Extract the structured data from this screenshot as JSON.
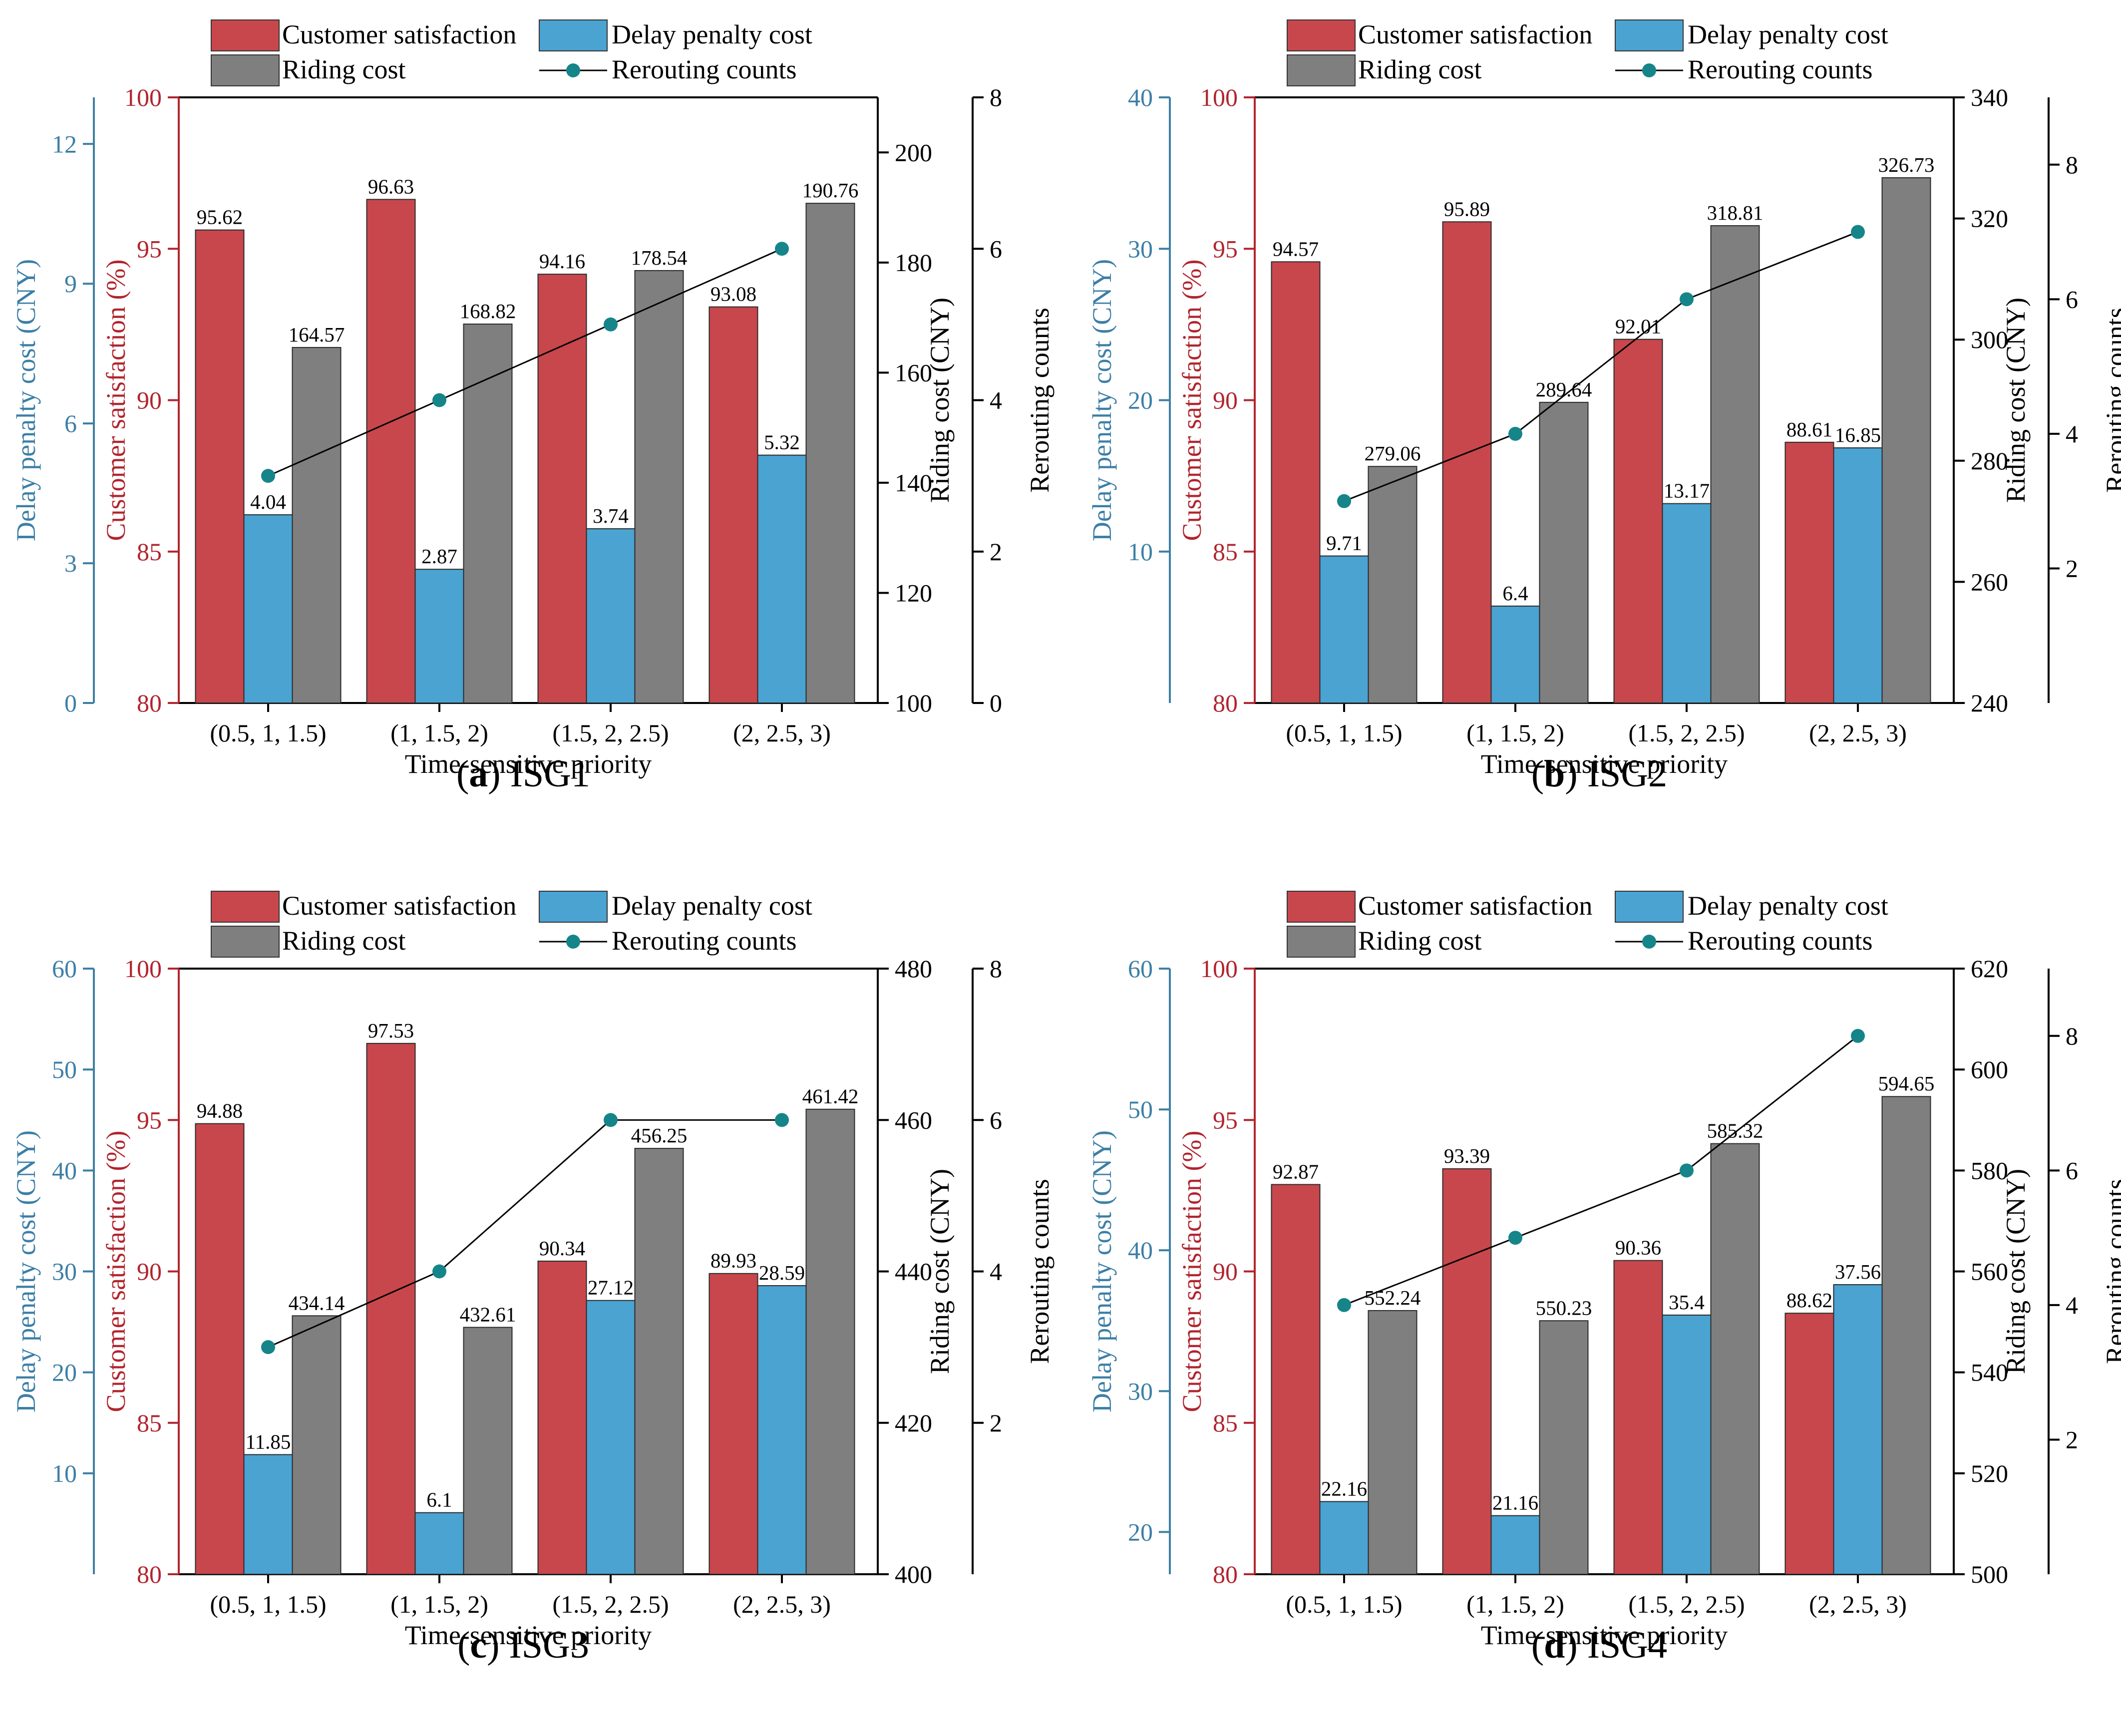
{
  "colors": {
    "customer_satisfaction": "#c8474c",
    "delay_penalty": "#4aa3d1",
    "riding_cost": "#7f7f7f",
    "rerouting_marker": "#15858a",
    "rerouting_line": "#000000",
    "axis_delay": "#3c7fa6",
    "axis_satisfaction": "#b1252e",
    "axis_black": "#000000"
  },
  "legend": {
    "customer_satisfaction": "Customer satisfaction",
    "delay_penalty": "Delay penalty cost",
    "riding_cost": "Riding cost",
    "rerouting": "Rerouting counts"
  },
  "chart_data": [
    {
      "type": "bar+line",
      "panel_letter": "(a)",
      "panel_name": "ISG1",
      "categories": [
        "(0.5, 1, 1.5)",
        "(1, 1.5, 2)",
        "(1.5, 2, 2.5)",
        "(2, 2.5, 3)"
      ],
      "xlabel": "Time-sensitive priority",
      "axes": {
        "delay": {
          "label": "Delay penalty cost (CNY)",
          "min": 0,
          "max": 13,
          "ticks": [
            "0",
            "3",
            "6",
            "9",
            "12"
          ],
          "tick_values": [
            0,
            3,
            6,
            9,
            12
          ]
        },
        "satisfaction": {
          "label": "Customer satisfaction (%)",
          "min": 80,
          "max": 100,
          "ticks": [
            "80",
            "85",
            "90",
            "95",
            "100"
          ],
          "tick_values": [
            80,
            85,
            90,
            95,
            100
          ]
        },
        "riding": {
          "label": "Riding cost (CNY)",
          "min": 100,
          "max": 210,
          "ticks": [
            "100",
            "120",
            "140",
            "160",
            "180",
            "200"
          ],
          "tick_values": [
            100,
            120,
            140,
            160,
            180,
            200
          ]
        },
        "rerouting": {
          "label": "Rerouting counts",
          "min": 0,
          "max": 8,
          "ticks": [
            "0",
            "2",
            "4",
            "6",
            "8"
          ],
          "tick_values": [
            0,
            2,
            4,
            6,
            8
          ]
        }
      },
      "series": [
        {
          "name": "Customer satisfaction",
          "values": [
            95.62,
            96.63,
            94.16,
            93.08
          ],
          "labels": [
            "95.62",
            "96.63",
            "94.16",
            "93.08"
          ]
        },
        {
          "name": "Delay penalty cost",
          "values": [
            4.04,
            2.87,
            3.74,
            5.32
          ],
          "labels": [
            "4.04",
            "2.87",
            "3.74",
            "5.32"
          ]
        },
        {
          "name": "Riding cost",
          "values": [
            164.57,
            168.82,
            178.54,
            190.76
          ],
          "labels": [
            "164.57",
            "168.82",
            "178.54",
            "190.76"
          ]
        },
        {
          "name": "Rerouting counts",
          "values": [
            3,
            4,
            5,
            6
          ]
        }
      ]
    },
    {
      "type": "bar+line",
      "panel_letter": "(b)",
      "panel_name": "ISG2",
      "categories": [
        "(0.5, 1, 1.5)",
        "(1, 1.5, 2)",
        "(1.5, 2, 2.5)",
        "(2, 2.5, 3)"
      ],
      "xlabel": "Time-sensitive priority",
      "axes": {
        "delay": {
          "label": "Delay penalty cost (CNY)",
          "min": 0,
          "max": 40,
          "ticks": [
            "10",
            "20",
            "30",
            "40"
          ],
          "tick_values": [
            10,
            20,
            30,
            40
          ]
        },
        "satisfaction": {
          "label": "Customer satisfaction (%)",
          "min": 80,
          "max": 100,
          "ticks": [
            "80",
            "85",
            "90",
            "95",
            "100"
          ],
          "tick_values": [
            80,
            85,
            90,
            95,
            100
          ]
        },
        "riding": {
          "label": "Riding cost (CNY)",
          "min": 240,
          "max": 340,
          "ticks": [
            "240",
            "260",
            "280",
            "300",
            "320",
            "340"
          ],
          "tick_values": [
            240,
            260,
            280,
            300,
            320,
            340
          ]
        },
        "rerouting": {
          "label": "Rerouting counts",
          "min": 0,
          "max": 9,
          "ticks": [
            "2",
            "4",
            "6",
            "8"
          ],
          "tick_values": [
            2,
            4,
            6,
            8
          ]
        }
      },
      "series": [
        {
          "name": "Customer satisfaction",
          "values": [
            94.57,
            95.89,
            92.01,
            88.61
          ],
          "labels": [
            "94.57",
            "95.89",
            "92.01",
            "88.61"
          ]
        },
        {
          "name": "Delay penalty cost",
          "values": [
            9.71,
            6.4,
            13.17,
            16.85
          ],
          "labels": [
            "9.71",
            "6.4",
            "13.17",
            "16.85"
          ]
        },
        {
          "name": "Riding cost",
          "values": [
            279.06,
            289.64,
            318.81,
            326.73
          ],
          "labels": [
            "279.06",
            "289.64",
            "318.81",
            "326.73"
          ]
        },
        {
          "name": "Rerouting counts",
          "values": [
            3,
            4,
            6,
            7
          ]
        }
      ]
    },
    {
      "type": "bar+line",
      "panel_letter": "(c)",
      "panel_name": "ISG3",
      "categories": [
        "(0.5, 1, 1.5)",
        "(1, 1.5, 2)",
        "(1.5, 2, 2.5)",
        "(2, 2.5, 3)"
      ],
      "xlabel": "Time-sensitive priority",
      "axes": {
        "delay": {
          "label": "Delay penalty cost (CNY)",
          "min": 0,
          "max": 60,
          "ticks": [
            "10",
            "20",
            "30",
            "40",
            "50",
            "60"
          ],
          "tick_values": [
            10,
            20,
            30,
            40,
            50,
            60
          ]
        },
        "satisfaction": {
          "label": "Customer satisfaction (%)",
          "min": 80,
          "max": 100,
          "ticks": [
            "80",
            "85",
            "90",
            "95",
            "100"
          ],
          "tick_values": [
            80,
            85,
            90,
            95,
            100
          ]
        },
        "riding": {
          "label": "Riding cost (CNY)",
          "min": 400,
          "max": 480,
          "ticks": [
            "400",
            "420",
            "440",
            "460",
            "480"
          ],
          "tick_values": [
            400,
            420,
            440,
            460,
            480
          ]
        },
        "rerouting": {
          "label": "Rerouting counts",
          "min": 0,
          "max": 8,
          "ticks": [
            "2",
            "4",
            "6",
            "8"
          ],
          "tick_values": [
            2,
            4,
            6,
            8
          ]
        }
      },
      "series": [
        {
          "name": "Customer satisfaction",
          "values": [
            94.88,
            97.53,
            90.34,
            89.93
          ],
          "labels": [
            "94.88",
            "97.53",
            "90.34",
            "89.93"
          ]
        },
        {
          "name": "Delay penalty cost",
          "values": [
            11.85,
            6.1,
            27.12,
            28.59
          ],
          "labels": [
            "11.85",
            "6.1",
            "27.12",
            "28.59"
          ]
        },
        {
          "name": "Riding cost",
          "values": [
            434.14,
            432.61,
            456.25,
            461.42
          ],
          "labels": [
            "434.14",
            "432.61",
            "456.25",
            "461.42"
          ]
        },
        {
          "name": "Rerouting counts",
          "values": [
            3,
            4,
            6,
            6
          ]
        }
      ]
    },
    {
      "type": "bar+line",
      "panel_letter": "(d)",
      "panel_name": "ISG4",
      "categories": [
        "(0.5, 1, 1.5)",
        "(1, 1.5, 2)",
        "(1.5, 2, 2.5)",
        "(2, 2.5, 3)"
      ],
      "xlabel": "Time-sensitive priority",
      "axes": {
        "delay": {
          "label": "Delay penalty cost (CNY)",
          "min": 17,
          "max": 60,
          "ticks": [
            "20",
            "30",
            "40",
            "50",
            "60"
          ],
          "tick_values": [
            20,
            30,
            40,
            50,
            60
          ]
        },
        "satisfaction": {
          "label": "Customer satisfaction (%)",
          "min": 80,
          "max": 100,
          "ticks": [
            "80",
            "85",
            "90",
            "95",
            "100"
          ],
          "tick_values": [
            80,
            85,
            90,
            95,
            100
          ]
        },
        "riding": {
          "label": "Riding cost (CNY)",
          "min": 500,
          "max": 620,
          "ticks": [
            "500",
            "520",
            "540",
            "560",
            "580",
            "600",
            "620"
          ],
          "tick_values": [
            500,
            520,
            540,
            560,
            580,
            600,
            620
          ]
        },
        "rerouting": {
          "label": "Rerouting counts",
          "min": 0,
          "max": 9,
          "ticks": [
            "2",
            "4",
            "6",
            "8"
          ],
          "tick_values": [
            2,
            4,
            6,
            8
          ]
        }
      },
      "series": [
        {
          "name": "Customer satisfaction",
          "values": [
            92.87,
            93.39,
            90.36,
            88.62
          ],
          "labels": [
            "92.87",
            "93.39",
            "90.36",
            "88.62"
          ]
        },
        {
          "name": "Delay penalty cost",
          "values": [
            22.16,
            21.16,
            35.4,
            37.56
          ],
          "labels": [
            "22.16",
            "21.16",
            "35.4",
            "37.56"
          ]
        },
        {
          "name": "Riding cost",
          "values": [
            552.24,
            550.23,
            585.32,
            594.65
          ],
          "labels": [
            "552.24",
            "550.23",
            "585.32",
            "594.65"
          ]
        },
        {
          "name": "Rerouting counts",
          "values": [
            4,
            5,
            6,
            8
          ]
        }
      ]
    }
  ]
}
